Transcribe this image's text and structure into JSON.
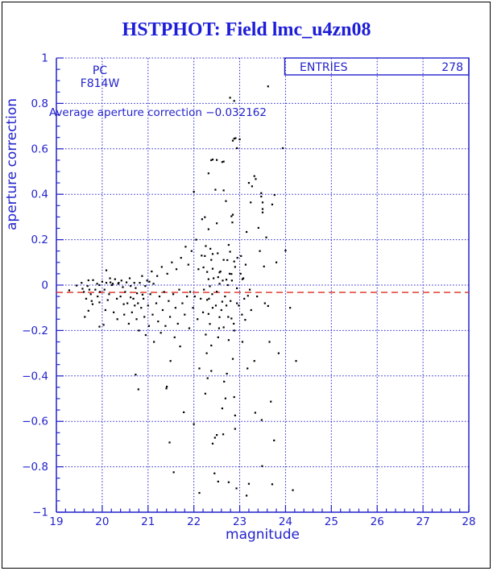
{
  "window": {
    "background": "#ffffff",
    "border_color": "#000000"
  },
  "title": {
    "text": "HSTPHOT: Field lmc_u4zn08",
    "color": "#1d1dd8"
  },
  "stats_box": {
    "label": "ENTRIES",
    "value": "278"
  },
  "annotations": {
    "detector": "PC",
    "filter": "F814W",
    "average_line": "Average aperture correction −0.032162"
  },
  "colors": {
    "axis": "#2323cc",
    "grid": "#2323cc",
    "points": "#000000",
    "reference": "#dd2a1e"
  },
  "chart_data": {
    "type": "scatter",
    "title": "HSTPHOT: Field lmc_u4zn08",
    "xlabel": "magnitude",
    "ylabel": "aperture correction",
    "xlim": [
      19,
      28
    ],
    "ylim": [
      -1,
      1
    ],
    "x_major_step": 1,
    "x_minor_step": 0.2,
    "y_major_step": 0.2,
    "y_minor_step": 0.05,
    "grid": true,
    "legend_position": "none",
    "entries": 278,
    "average_aperture_correction": -0.032162,
    "reference_line": {
      "y": -0.032162,
      "style": "dashed"
    },
    "points": [
      [
        19.28,
        -0.023
      ],
      [
        19.44,
        -0.002
      ],
      [
        19.55,
        0.01
      ],
      [
        19.57,
        -0.016
      ],
      [
        19.6,
        -0.03
      ],
      [
        19.62,
        -0.14
      ],
      [
        19.65,
        -0.06
      ],
      [
        19.68,
        -0.004
      ],
      [
        19.7,
        0.021
      ],
      [
        19.7,
        -0.113
      ],
      [
        19.72,
        -0.02
      ],
      [
        19.75,
        -0.04
      ],
      [
        19.77,
        -0.07
      ],
      [
        19.79,
        -0.084
      ],
      [
        19.8,
        0.022
      ],
      [
        19.85,
        -0.02
      ],
      [
        19.89,
        0.006
      ],
      [
        19.9,
        -0.05
      ],
      [
        19.94,
        0.0
      ],
      [
        19.94,
        -0.076
      ],
      [
        19.94,
        -0.183
      ],
      [
        19.95,
        -0.03
      ],
      [
        20.0,
        0.015
      ],
      [
        20.03,
        -0.175
      ],
      [
        20.05,
        -0.02
      ],
      [
        20.07,
        -0.11
      ],
      [
        20.09,
        0.065
      ],
      [
        20.09,
        0.01
      ],
      [
        20.12,
        -0.066
      ],
      [
        20.15,
        -0.04
      ],
      [
        20.17,
        0.03
      ],
      [
        20.18,
        0.012
      ],
      [
        20.21,
        0.0
      ],
      [
        20.23,
        0.006
      ],
      [
        20.25,
        -0.12
      ],
      [
        20.28,
        0.026
      ],
      [
        20.32,
        -0.06
      ],
      [
        20.33,
        -0.15
      ],
      [
        20.35,
        0.006
      ],
      [
        20.36,
        0.01
      ],
      [
        20.4,
        -0.05
      ],
      [
        20.42,
        0.02
      ],
      [
        20.45,
        -0.009
      ],
      [
        20.47,
        -0.084
      ],
      [
        20.48,
        -0.13
      ],
      [
        20.5,
        -0.03
      ],
      [
        20.53,
        0.012
      ],
      [
        20.55,
        -0.08
      ],
      [
        20.58,
        -0.17
      ],
      [
        20.6,
        0.03
      ],
      [
        20.62,
        -0.004
      ],
      [
        20.62,
        -0.054
      ],
      [
        20.65,
        -0.12
      ],
      [
        20.68,
        -0.06
      ],
      [
        20.7,
        0.01
      ],
      [
        20.71,
        -0.09
      ],
      [
        20.73,
        -0.013
      ],
      [
        20.73,
        -0.394
      ],
      [
        20.75,
        -0.15
      ],
      [
        20.76,
        -0.036
      ],
      [
        20.78,
        -0.08
      ],
      [
        20.79,
        -0.459
      ],
      [
        20.8,
        -0.2
      ],
      [
        20.82,
        0.01
      ],
      [
        20.85,
        -0.1
      ],
      [
        20.87,
        0.04
      ],
      [
        20.88,
        -0.042
      ],
      [
        20.9,
        -0.06
      ],
      [
        20.92,
        -0.14
      ],
      [
        20.94,
        -0.004
      ],
      [
        20.95,
        -0.22
      ],
      [
        20.98,
        0.02
      ],
      [
        21.0,
        -0.09
      ],
      [
        21.02,
        -0.18
      ],
      [
        21.03,
        0.015
      ],
      [
        21.05,
        -0.04
      ],
      [
        21.08,
        0.06
      ],
      [
        21.1,
        -0.13
      ],
      [
        21.12,
        0.006
      ],
      [
        21.13,
        -0.25
      ],
      [
        21.18,
        -0.08
      ],
      [
        21.2,
        0.04
      ],
      [
        21.22,
        -0.16
      ],
      [
        21.25,
        -0.05
      ],
      [
        21.28,
        -0.21
      ],
      [
        21.3,
        0.08
      ],
      [
        21.32,
        -0.11
      ],
      [
        21.35,
        -0.03
      ],
      [
        21.38,
        -0.18
      ],
      [
        21.4,
        -0.455
      ],
      [
        21.41,
        -0.447
      ],
      [
        21.42,
        0.05
      ],
      [
        21.45,
        -0.07
      ],
      [
        21.47,
        -0.693
      ],
      [
        21.48,
        -0.14
      ],
      [
        21.49,
        -0.334
      ],
      [
        21.52,
        0.1
      ],
      [
        21.55,
        -0.04
      ],
      [
        21.56,
        -0.824
      ],
      [
        21.58,
        -0.23
      ],
      [
        21.6,
        -0.1
      ],
      [
        21.62,
        0.07
      ],
      [
        21.65,
        -0.17
      ],
      [
        21.68,
        -0.02
      ],
      [
        21.7,
        -0.27
      ],
      [
        21.72,
        0.12
      ],
      [
        21.75,
        -0.08
      ],
      [
        21.78,
        -0.56
      ],
      [
        21.8,
        -0.13
      ],
      [
        21.82,
        0.169
      ],
      [
        21.85,
        -0.05
      ],
      [
        21.88,
        0.09
      ],
      [
        21.9,
        -0.19
      ],
      [
        21.92,
        -0.03
      ],
      [
        21.95,
        0.15
      ],
      [
        21.98,
        -0.1
      ],
      [
        22.0,
        0.411
      ],
      [
        22.0,
        -0.612
      ],
      [
        22.02,
        -0.05
      ],
      [
        22.05,
        0.2
      ],
      [
        22.08,
        -0.15
      ],
      [
        22.1,
        0.07
      ],
      [
        22.12,
        -0.367
      ],
      [
        22.12,
        -0.915
      ],
      [
        22.15,
        -0.06
      ],
      [
        22.17,
        0.13
      ],
      [
        22.18,
        0.29
      ],
      [
        22.2,
        -0.12
      ],
      [
        22.21,
        0.078
      ],
      [
        22.22,
        -0.02
      ],
      [
        22.24,
        0.128
      ],
      [
        22.24,
        0.299
      ],
      [
        22.25,
        -0.478
      ],
      [
        22.26,
        0.172
      ],
      [
        22.26,
        -0.218
      ],
      [
        22.28,
        -0.3
      ],
      [
        22.29,
        0.058
      ],
      [
        22.29,
        -0.065
      ],
      [
        22.3,
        -0.41
      ],
      [
        22.32,
        0.492
      ],
      [
        22.32,
        0.246
      ],
      [
        22.32,
        0.026
      ],
      [
        22.32,
        -0.127
      ],
      [
        22.33,
        -0.06
      ],
      [
        22.35,
        -0.005
      ],
      [
        22.35,
        -0.171
      ],
      [
        22.36,
        0.16
      ],
      [
        22.38,
        0.55
      ],
      [
        22.38,
        0.111
      ],
      [
        22.38,
        -0.266
      ],
      [
        22.38,
        -0.378
      ],
      [
        22.4,
        -0.04
      ],
      [
        22.41,
        0.553
      ],
      [
        22.41,
        0.137
      ],
      [
        22.41,
        0.072
      ],
      [
        22.41,
        -0.1
      ],
      [
        22.41,
        -0.698
      ],
      [
        22.43,
        0.03
      ],
      [
        22.45,
        -0.829
      ],
      [
        22.46,
        -0.672
      ],
      [
        22.47,
        0.42
      ],
      [
        22.48,
        -0.09
      ],
      [
        22.5,
        0.551
      ],
      [
        22.5,
        0.272
      ],
      [
        22.5,
        -0.029
      ],
      [
        22.5,
        -0.66
      ],
      [
        22.52,
        0.14
      ],
      [
        22.53,
        0.035
      ],
      [
        22.53,
        -0.23
      ],
      [
        22.53,
        -0.865
      ],
      [
        22.55,
        -0.19
      ],
      [
        22.56,
        0.006
      ],
      [
        22.56,
        0.056
      ],
      [
        22.56,
        -0.141
      ],
      [
        22.58,
        0.06
      ],
      [
        22.6,
        -0.11
      ],
      [
        22.62,
        0.542
      ],
      [
        22.62,
        -0.073
      ],
      [
        22.62,
        -0.543
      ],
      [
        22.63,
        0.02
      ],
      [
        22.64,
        -0.657
      ],
      [
        22.65,
        0.544
      ],
      [
        22.65,
        0.417
      ],
      [
        22.65,
        0.111
      ],
      [
        22.65,
        -0.186
      ],
      [
        22.66,
        -0.425
      ],
      [
        22.68,
        -0.05
      ],
      [
        22.69,
        -0.499
      ],
      [
        22.7,
        0.37
      ],
      [
        22.71,
        0.024
      ],
      [
        22.71,
        -0.09
      ],
      [
        22.72,
        -0.39
      ],
      [
        22.73,
        0.11
      ],
      [
        22.74,
        0.0
      ],
      [
        22.75,
        -0.14
      ],
      [
        22.76,
        0.177
      ],
      [
        22.76,
        -0.242
      ],
      [
        22.76,
        -0.868
      ],
      [
        22.78,
        0.05
      ],
      [
        22.79,
        0.825
      ],
      [
        22.79,
        0.147
      ],
      [
        22.8,
        -0.07
      ],
      [
        22.82,
        0.303
      ],
      [
        22.82,
        0.049
      ],
      [
        22.82,
        -0.147
      ],
      [
        22.83,
        0.02
      ],
      [
        22.84,
        0.276
      ],
      [
        22.85,
        0.636
      ],
      [
        22.85,
        0.31
      ],
      [
        22.85,
        -0.325
      ],
      [
        22.87,
        -0.17
      ],
      [
        22.88,
        0.811
      ],
      [
        22.88,
        0.645
      ],
      [
        22.88,
        0.104
      ],
      [
        22.88,
        -0.2
      ],
      [
        22.88,
        -0.493
      ],
      [
        22.9,
        0.08
      ],
      [
        22.9,
        -0.574
      ],
      [
        22.9,
        -0.633
      ],
      [
        22.91,
        0.647
      ],
      [
        22.93,
        -0.895
      ],
      [
        22.94,
        0.603
      ],
      [
        22.94,
        -0.014
      ],
      [
        22.94,
        -0.08
      ],
      [
        22.95,
        0.12
      ],
      [
        22.98,
        -0.09
      ],
      [
        23.0,
        0.642
      ],
      [
        23.02,
        0.05
      ],
      [
        23.03,
        0.128
      ],
      [
        23.05,
        -0.13
      ],
      [
        23.06,
        0.026
      ],
      [
        23.06,
        -0.25
      ],
      [
        23.08,
        0.03
      ],
      [
        23.1,
        -0.06
      ],
      [
        23.12,
        -0.153
      ],
      [
        23.13,
        0.09
      ],
      [
        23.15,
        0.234
      ],
      [
        23.15,
        -0.927
      ],
      [
        23.17,
        -0.367
      ],
      [
        23.18,
        -0.047
      ],
      [
        23.2,
        0.45
      ],
      [
        23.2,
        -0.875
      ],
      [
        23.22,
        -0.02
      ],
      [
        23.24,
        0.364
      ],
      [
        23.25,
        -0.11
      ],
      [
        23.27,
        0.435
      ],
      [
        23.32,
        0.48
      ],
      [
        23.32,
        -0.334
      ],
      [
        23.34,
        -0.562
      ],
      [
        23.35,
        0.467
      ],
      [
        23.38,
        -0.05
      ],
      [
        23.41,
        0.252
      ],
      [
        23.44,
        0.15
      ],
      [
        23.47,
        0.39
      ],
      [
        23.47,
        0.405
      ],
      [
        23.48,
        -0.594
      ],
      [
        23.49,
        -0.797
      ],
      [
        23.5,
        0.364
      ],
      [
        23.5,
        0.335
      ],
      [
        23.5,
        0.32
      ],
      [
        23.53,
        0.082
      ],
      [
        23.55,
        -0.08
      ],
      [
        23.58,
        0.21
      ],
      [
        23.62,
        0.875
      ],
      [
        23.62,
        -0.092
      ],
      [
        23.65,
        -0.25
      ],
      [
        23.68,
        -0.513
      ],
      [
        23.71,
        0.355
      ],
      [
        23.71,
        -0.877
      ],
      [
        23.75,
        -0.684
      ],
      [
        23.76,
        0.397
      ],
      [
        23.8,
        0.1
      ],
      [
        23.85,
        -0.3
      ],
      [
        23.94,
        0.603
      ],
      [
        24.0,
        0.152
      ],
      [
        24.1,
        -0.1
      ],
      [
        24.16,
        -0.903
      ],
      [
        24.23,
        -0.334
      ]
    ]
  }
}
